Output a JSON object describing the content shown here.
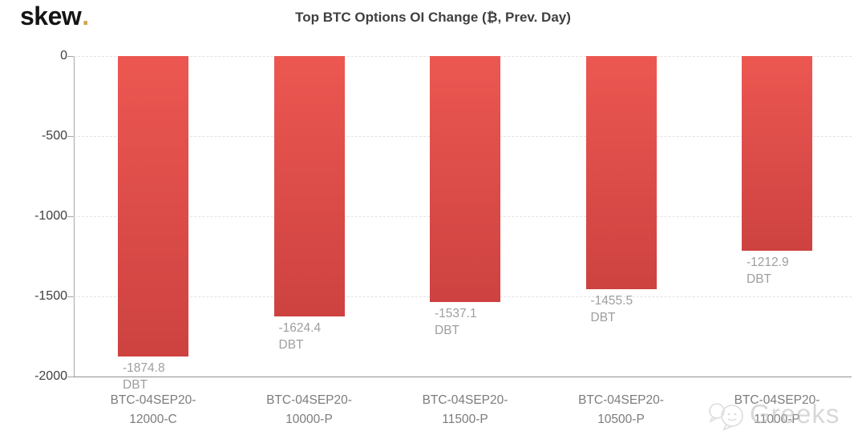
{
  "logo": {
    "text": "skew",
    "dot": ".",
    "dot_color": "#cfa54a"
  },
  "watermark": {
    "text": "Greeks",
    "icon": "chat-bubbles-icon"
  },
  "chart_data": {
    "type": "bar",
    "title": "Top BTC Options OI Change (₿, Prev. Day)",
    "categories": [
      "BTC-04SEP20-12000-C",
      "BTC-04SEP20-10000-P",
      "BTC-04SEP20-11500-P",
      "BTC-04SEP20-10500-P",
      "BTC-04SEP20-11000-P"
    ],
    "categories_display": [
      [
        "BTC-04SEP20-",
        "12000-C"
      ],
      [
        "BTC-04SEP20-",
        "10000-P"
      ],
      [
        "BTC-04SEP20-",
        "11500-P"
      ],
      [
        "BTC-04SEP20-",
        "10500-P"
      ],
      [
        "BTC-04SEP20-",
        "11000-P"
      ]
    ],
    "values": [
      -1874.8,
      -1624.4,
      -1537.1,
      -1455.5,
      -1212.9
    ],
    "value_labels": [
      "-1874.8",
      "-1624.4",
      "-1537.1",
      "-1455.5",
      "-1212.9"
    ],
    "unit": "DBT",
    "xlabel": "",
    "ylabel": "",
    "ylim": [
      -2000,
      0
    ],
    "yticks": [
      0,
      -500,
      -1000,
      -1500,
      -2000
    ],
    "ytick_labels": [
      "0",
      "-500",
      "-1000",
      "-1500",
      "-2000"
    ],
    "bar_color_top": "#ec5751",
    "bar_color_bottom": "#cd4240",
    "grid": "dashed-horizontal",
    "legend": "none"
  }
}
